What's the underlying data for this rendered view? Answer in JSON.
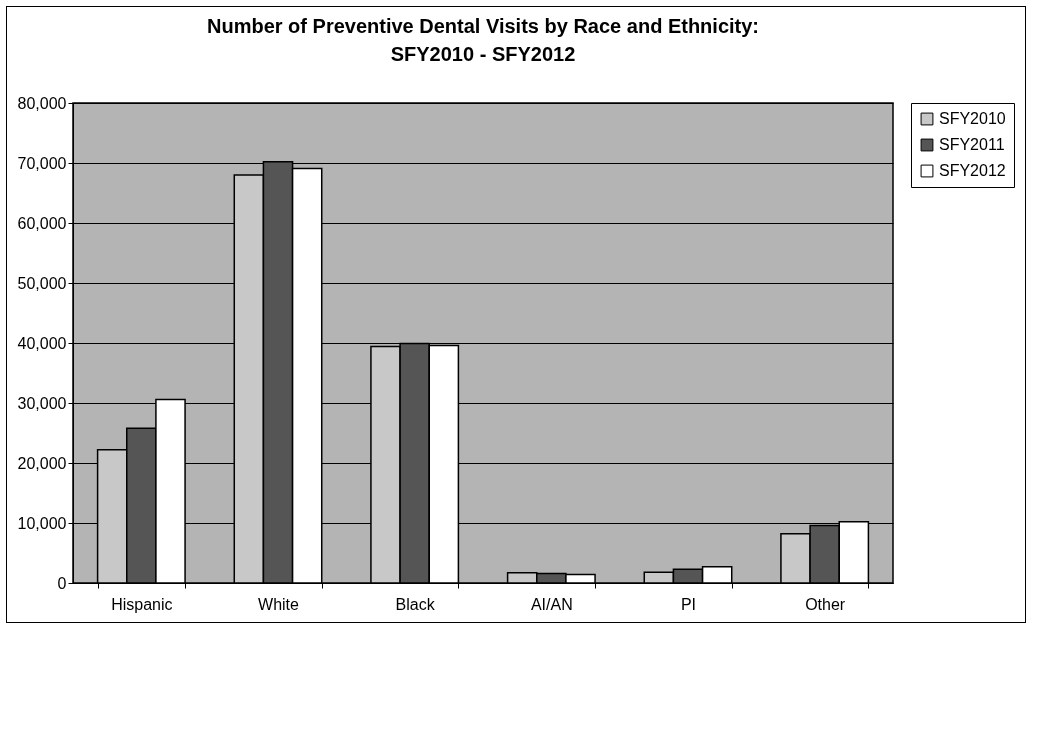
{
  "chart_data": {
    "type": "bar",
    "title": "Number of Preventive Dental Visits by Race and Ethnicity:\nSFY2010 - SFY2012",
    "categories": [
      "Hispanic",
      "White",
      "Black",
      "AI/AN",
      "PI",
      "Other"
    ],
    "series": [
      {
        "name": "SFY2010",
        "color": "#c8c8c8",
        "values": [
          22200,
          68000,
          39400,
          1700,
          1800,
          8200
        ]
      },
      {
        "name": "SFY2011",
        "color": "#555555",
        "values": [
          25800,
          70200,
          39900,
          1600,
          2300,
          9600
        ]
      },
      {
        "name": "SFY2012",
        "color": "#ffffff",
        "values": [
          30600,
          69100,
          39600,
          1400,
          2700,
          10200
        ]
      }
    ],
    "ylim": [
      0,
      80000
    ],
    "yticks": [
      0,
      {
        "value": 10000,
        "label": "10,000"
      },
      {
        "value": 20000,
        "label": "20,000"
      },
      {
        "value": 30000,
        "label": "30,000"
      },
      {
        "value": 40000,
        "label": "40,000"
      },
      {
        "value": 50000,
        "label": "50,000"
      },
      {
        "value": 60000,
        "label": "60,000"
      },
      {
        "value": 70000,
        "label": "70,000"
      },
      {
        "value": 80000,
        "label": "80,000"
      }
    ],
    "grid": "y",
    "legend": "right"
  }
}
